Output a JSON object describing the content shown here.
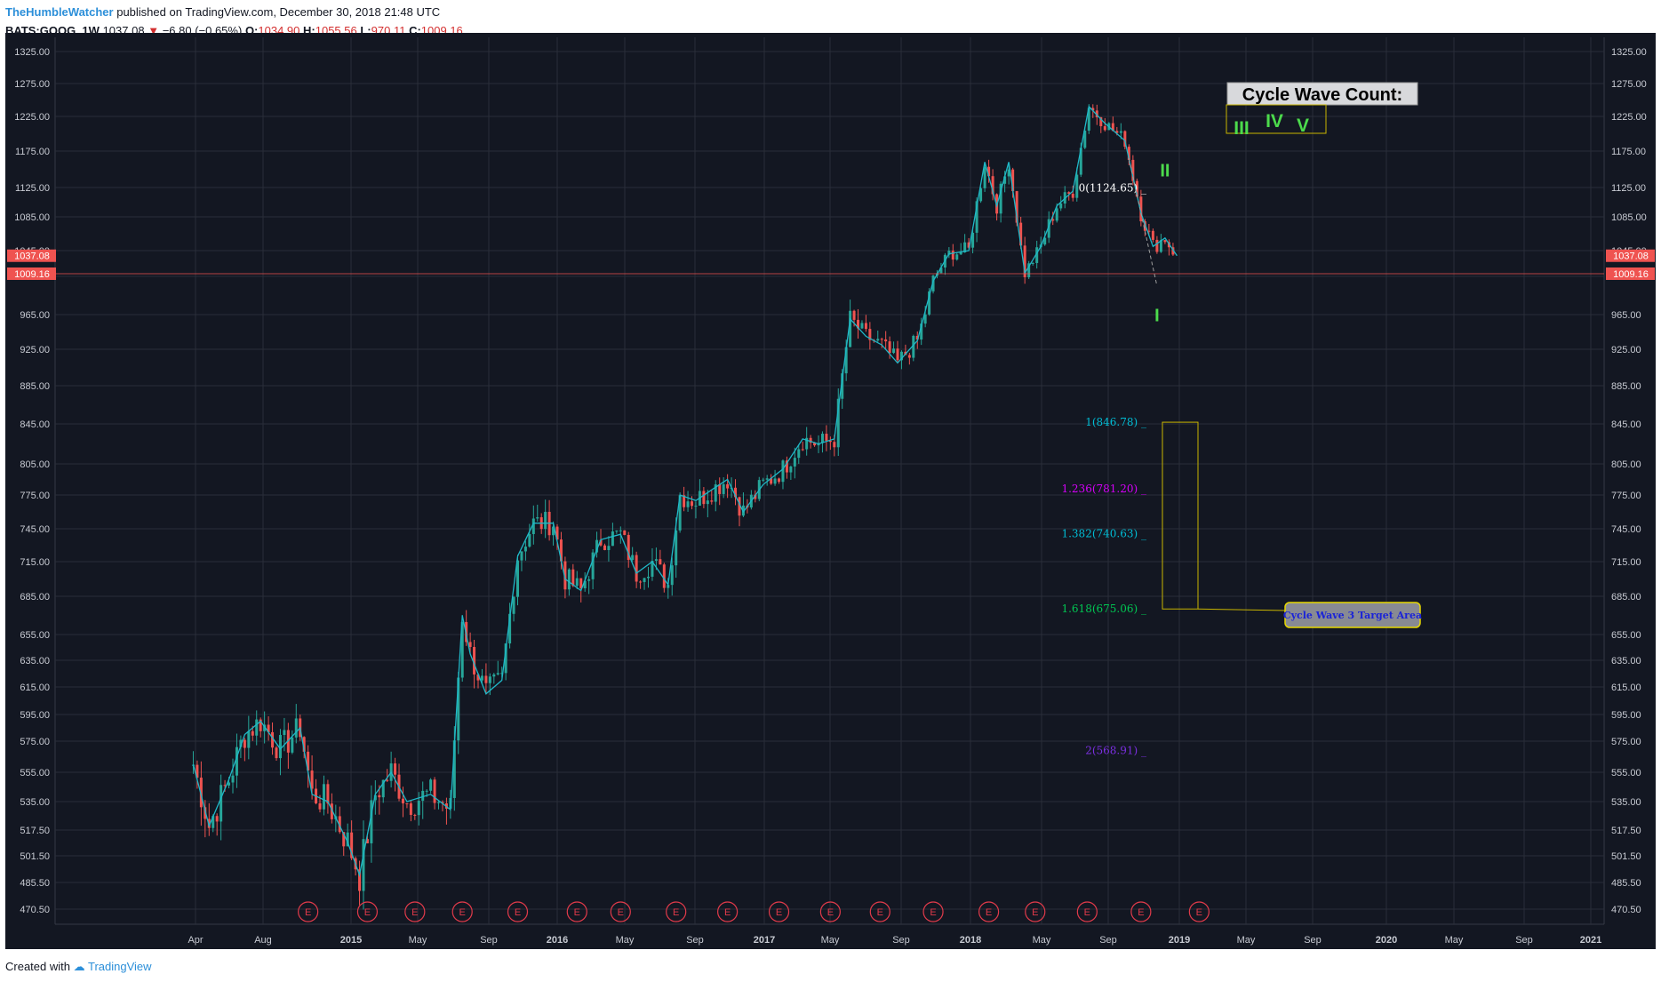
{
  "header": {
    "author": "TheHumbleWatcher",
    "published": "published on TradingView.com, December 30, 2018 21:48 UTC",
    "symbol": "BATS:GOOG, 1W",
    "last": "1037.08",
    "change": "−6.80 (−0.65%)",
    "o_label": "O:",
    "o_value": "1034.90",
    "h_label": "H:",
    "h_value": "1055.56",
    "l_label": "L:",
    "l_value": "970.11",
    "c_label": "C:",
    "c_value": "1009.16"
  },
  "footer": {
    "created_with": "Created with",
    "brand": "TradingView"
  },
  "colors": {
    "background": "#131722",
    "grid": "#2a2e39",
    "up": "#26a69a",
    "down": "#ef5350",
    "wave_line": "#1fb8c8",
    "price_tag": "#ef5350",
    "axis_text": "#c8cbd3",
    "fib_1": "#00bcd4",
    "fib_1236": "#d500f9",
    "fib_1382": "#00bcd4",
    "fib_1618": "#00c853",
    "fib_2": "#7b2fe0",
    "fib_0": "#ffffff",
    "wave_label": "#4cdb4c",
    "target_box": "#c8b400"
  },
  "chart_data": {
    "type": "candlestick",
    "symbol": "BATS:GOOG",
    "interval": "1W",
    "ylim": [
      463,
      1342
    ],
    "y_ticks": [
      1325,
      1275,
      1225,
      1175,
      1125,
      1085,
      1045,
      1005,
      965,
      925,
      885,
      845,
      805,
      775,
      745,
      715,
      685,
      655,
      635,
      615,
      595,
      575,
      555,
      535,
      517.5,
      501.5,
      485.5,
      470.5
    ],
    "x_ticks": [
      "Apr",
      "Aug",
      "2015",
      "May",
      "Sep",
      "2016",
      "May",
      "Sep",
      "2017",
      "May",
      "Sep",
      "2018",
      "May",
      "Sep",
      "2019",
      "May",
      "Sep",
      "2020",
      "May",
      "Sep",
      "2021"
    ],
    "close_path": [
      [
        "2014-03-28",
        560
      ],
      [
        "2014-04-25",
        520
      ],
      [
        "2014-05-30",
        550
      ],
      [
        "2014-06-27",
        580
      ],
      [
        "2014-07-25",
        590
      ],
      [
        "2014-08-29",
        570
      ],
      [
        "2014-10-03",
        585
      ],
      [
        "2014-10-24",
        540
      ],
      [
        "2014-11-21",
        535
      ],
      [
        "2014-12-26",
        510
      ],
      [
        "2015-01-16",
        490
      ],
      [
        "2015-02-13",
        540
      ],
      [
        "2015-03-13",
        555
      ],
      [
        "2015-04-10",
        535
      ],
      [
        "2015-05-22",
        540
      ],
      [
        "2015-06-26",
        530
      ],
      [
        "2015-07-17",
        670
      ],
      [
        "2015-07-31",
        640
      ],
      [
        "2015-08-28",
        610
      ],
      [
        "2015-09-25",
        620
      ],
      [
        "2015-10-23",
        720
      ],
      [
        "2015-11-20",
        750
      ],
      [
        "2015-12-25",
        750
      ],
      [
        "2016-01-15",
        700
      ],
      [
        "2016-02-12",
        690
      ],
      [
        "2016-03-18",
        735
      ],
      [
        "2016-04-22",
        740
      ],
      [
        "2016-05-20",
        705
      ],
      [
        "2016-06-17",
        715
      ],
      [
        "2016-07-15",
        695
      ],
      [
        "2016-08-05",
        775
      ],
      [
        "2016-09-02",
        770
      ],
      [
        "2016-09-30",
        780
      ],
      [
        "2016-10-28",
        790
      ],
      [
        "2016-11-25",
        760
      ],
      [
        "2016-12-30",
        785
      ],
      [
        "2017-02-03",
        800
      ],
      [
        "2017-03-10",
        830
      ],
      [
        "2017-04-07",
        825
      ],
      [
        "2017-05-05",
        830
      ],
      [
        "2017-06-02",
        960
      ],
      [
        "2017-06-30",
        940
      ],
      [
        "2017-07-28",
        930
      ],
      [
        "2017-08-25",
        910
      ],
      [
        "2017-09-29",
        935
      ],
      [
        "2017-10-27",
        1000
      ],
      [
        "2017-11-24",
        1040
      ],
      [
        "2017-12-29",
        1045
      ],
      [
        "2018-01-26",
        1160
      ],
      [
        "2018-02-16",
        1100
      ],
      [
        "2018-03-09",
        1160
      ],
      [
        "2018-04-06",
        1010
      ],
      [
        "2018-05-04",
        1050
      ],
      [
        "2018-06-01",
        1100
      ],
      [
        "2018-06-29",
        1120
      ],
      [
        "2018-07-27",
        1240
      ],
      [
        "2018-08-24",
        1215
      ],
      [
        "2018-09-28",
        1190
      ],
      [
        "2018-10-26",
        1090
      ],
      [
        "2018-11-16",
        1050
      ],
      [
        "2018-12-07",
        1060
      ],
      [
        "2018-12-28",
        1037.08
      ]
    ],
    "last_price": 1037.08,
    "close_line": 1009.16,
    "fib_levels": [
      {
        "ratio": "0",
        "value": 1124.65,
        "label": "0(1124.65)"
      },
      {
        "ratio": "1",
        "value": 846.78,
        "label": "1(846.78)"
      },
      {
        "ratio": "1.236",
        "value": 781.2,
        "label": "1.236(781.20)"
      },
      {
        "ratio": "1.382",
        "value": 740.63,
        "label": "1.382(740.63)"
      },
      {
        "ratio": "1.618",
        "value": 675.06,
        "label": "1.618(675.06)"
      },
      {
        "ratio": "2",
        "value": 568.91,
        "label": "2(568.91)"
      }
    ],
    "wave_labels": [
      {
        "text": "I",
        "date": "2018-11-23",
        "value": 975
      },
      {
        "text": "II",
        "date": "2018-12-07",
        "value": 1140
      }
    ],
    "earnings_dates": [
      "2014-10-17",
      "2015-01-30",
      "2015-04-24",
      "2015-07-17",
      "2015-10-23",
      "2016-02-05",
      "2016-04-22",
      "2016-07-29",
      "2016-10-28",
      "2017-01-27",
      "2017-04-28",
      "2017-07-25",
      "2017-10-27",
      "2018-02-02",
      "2018-04-24",
      "2018-07-24",
      "2018-10-26",
      "2019-02-05"
    ],
    "earnings_marker": "E"
  },
  "annotations": {
    "cycle_title": "Cycle Wave Count:",
    "cycle_waves": [
      "III",
      "IV",
      "V"
    ],
    "target_label": "Cycle Wave 3 Target Area"
  }
}
